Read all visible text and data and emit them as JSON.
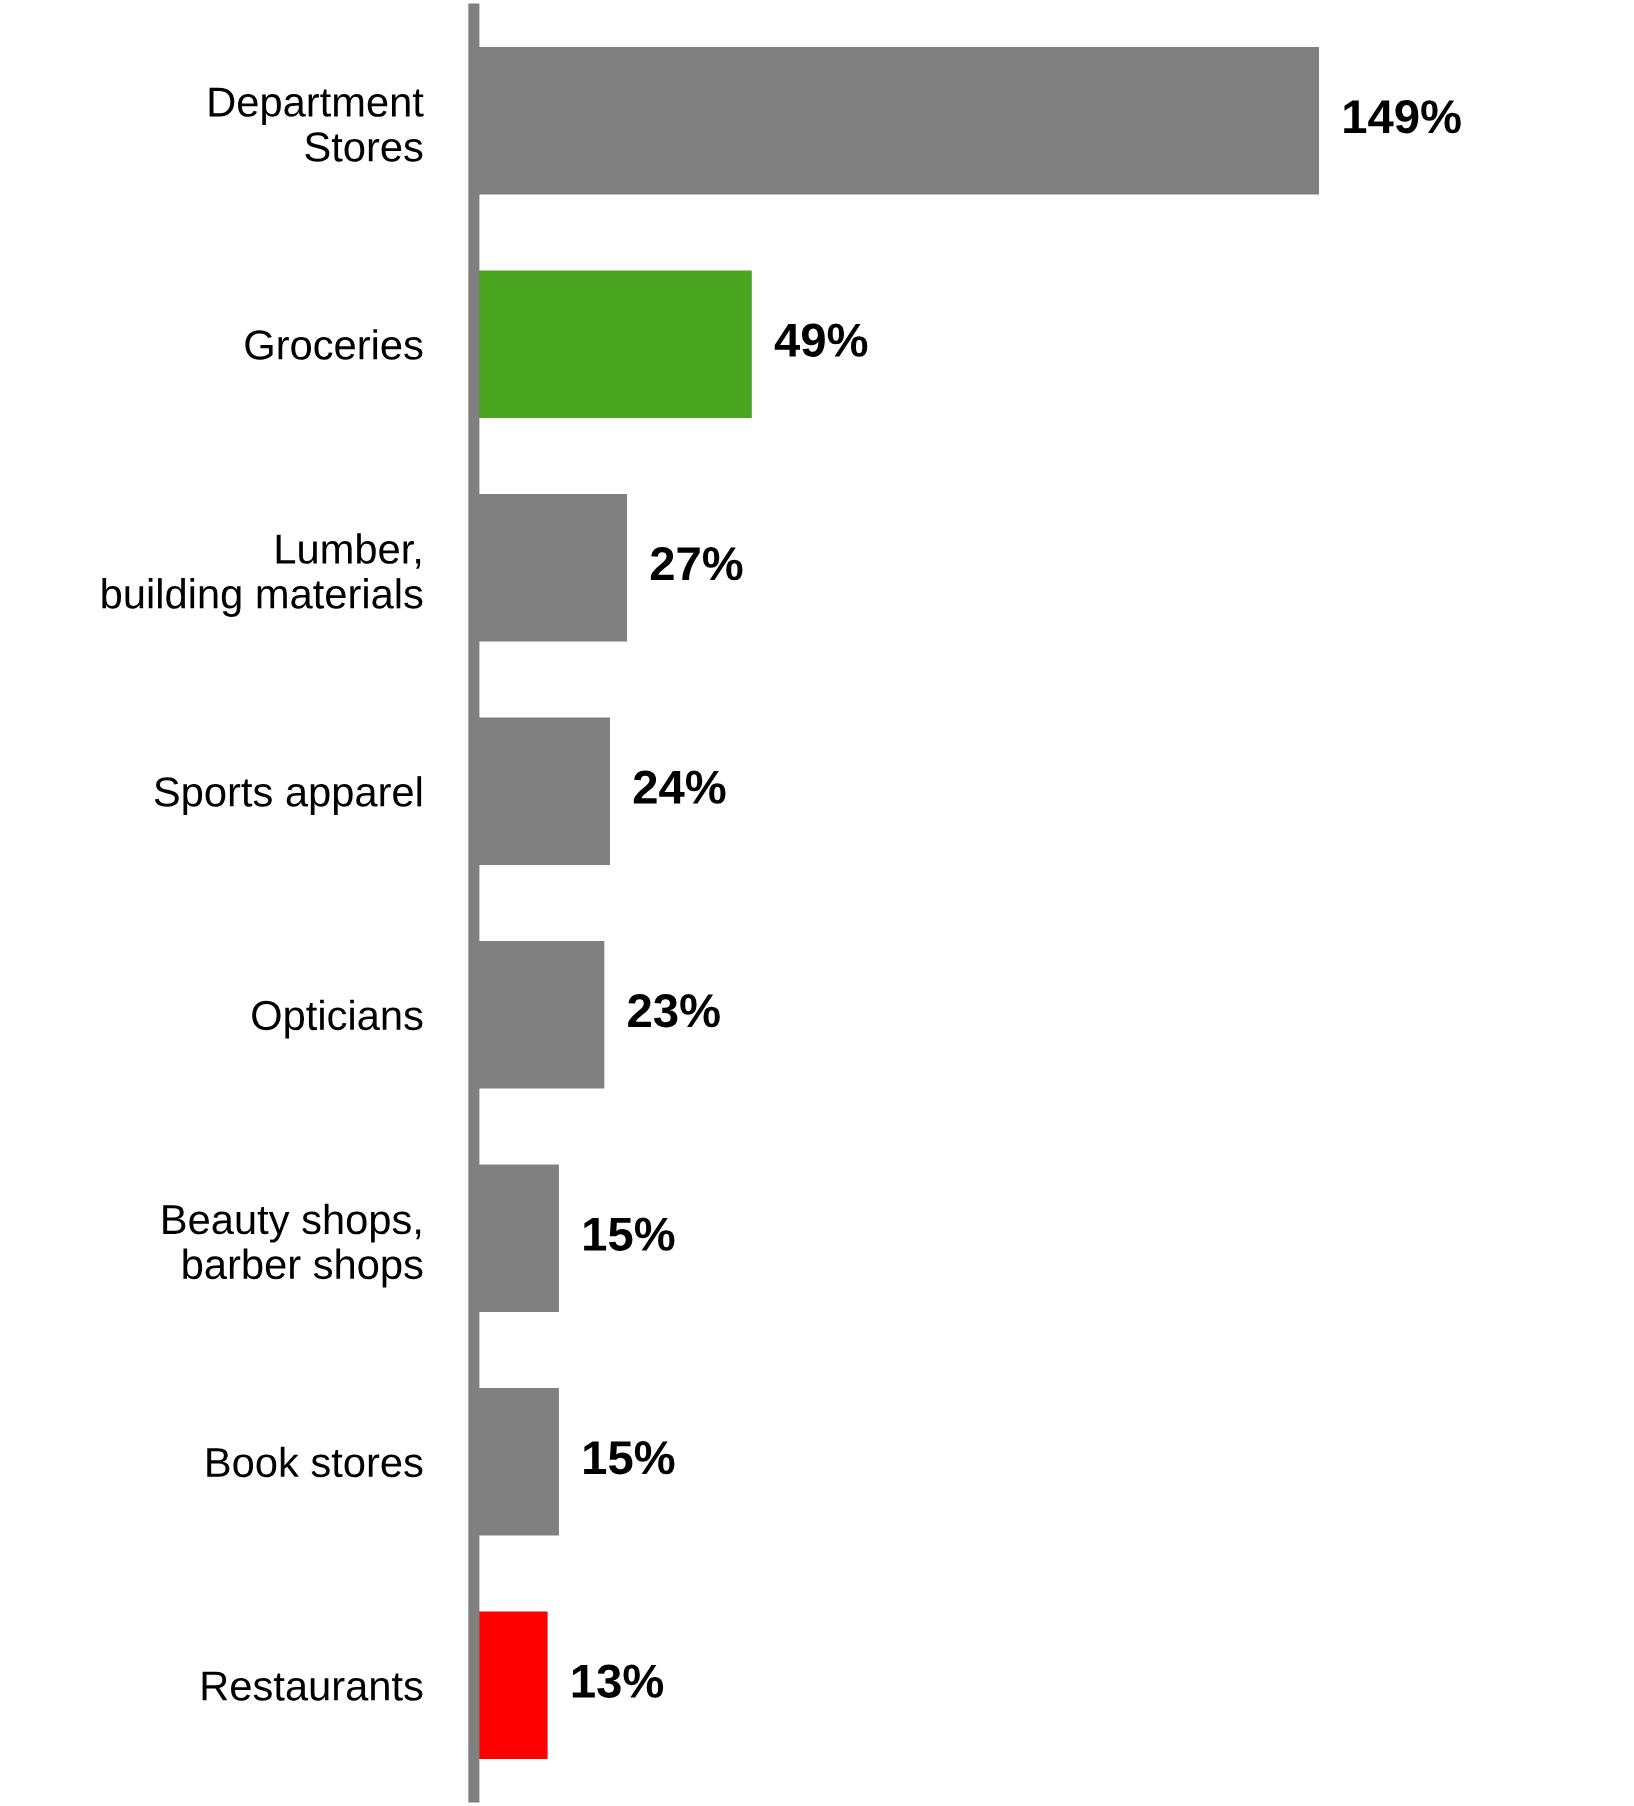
{
  "chart_data": {
    "type": "bar",
    "orientation": "horizontal",
    "categories": [
      "Department\nStores",
      "Groceries",
      "Lumber,\nbuilding materials",
      "Sports apparel",
      "Opticians",
      "Beauty shops,\nbarber shops",
      "Book stores",
      "Restaurants"
    ],
    "values": [
      149,
      49,
      27,
      24,
      23,
      15,
      15,
      13
    ],
    "colors": [
      "#808080",
      "#4aa520",
      "#808080",
      "#808080",
      "#808080",
      "#808080",
      "#808080",
      "#ff0000"
    ],
    "value_labels": [
      "149%",
      "49%",
      "27%",
      "24%",
      "23%",
      "15%",
      "15%",
      "13%"
    ],
    "grid": false,
    "legend": false
  }
}
